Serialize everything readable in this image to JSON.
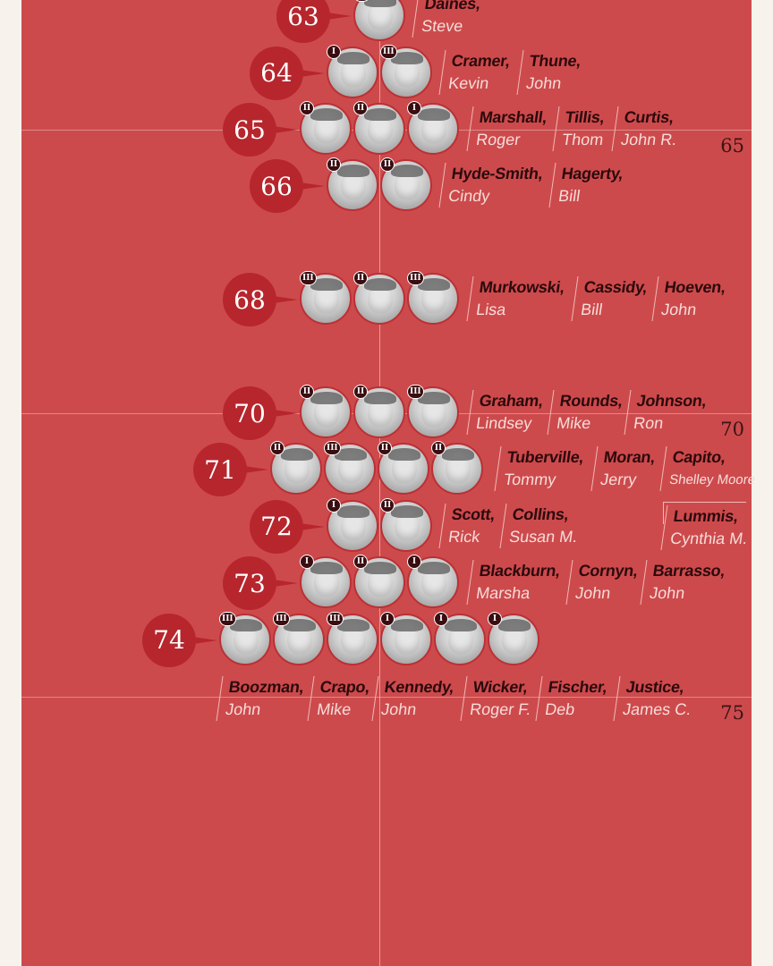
{
  "chart_data": {
    "type": "scatter",
    "title": "",
    "xlabel": "",
    "ylabel": "",
    "axis_ticks": [
      "65",
      "70",
      "75"
    ],
    "colors": {
      "panel": "#cd4a4c",
      "badge": "#b7262d",
      "class_badge": "#3a0d10"
    },
    "groups": [
      {
        "age": 63,
        "age_label": "63",
        "senators": [
          {
            "last": "Daines,",
            "first": "Steve",
            "class": "III"
          }
        ]
      },
      {
        "age": 64,
        "age_label": "64",
        "senators": [
          {
            "last": "Cramer,",
            "first": "Kevin",
            "class": "I"
          },
          {
            "last": "Thune,",
            "first": "John",
            "class": "III"
          }
        ]
      },
      {
        "age": 65,
        "age_label": "65",
        "senators": [
          {
            "last": "Marshall,",
            "first": "Roger",
            "class": "II"
          },
          {
            "last": "Tillis,",
            "first": "Thom",
            "class": "II"
          },
          {
            "last": "Curtis,",
            "first": "John R.",
            "class": "I"
          }
        ]
      },
      {
        "age": 66,
        "age_label": "66",
        "senators": [
          {
            "last": "Hyde-Smith,",
            "first": "Cindy",
            "class": "II"
          },
          {
            "last": "Hagerty,",
            "first": "Bill",
            "class": "II"
          }
        ]
      },
      {
        "age": 68,
        "age_label": "68",
        "senators": [
          {
            "last": "Murkowski,",
            "first": "Lisa",
            "class": "III"
          },
          {
            "last": "Cassidy,",
            "first": "Bill",
            "class": "II"
          },
          {
            "last": "Hoeven,",
            "first": "John",
            "class": "III"
          }
        ]
      },
      {
        "age": 70,
        "age_label": "70",
        "senators": [
          {
            "last": "Graham,",
            "first": "Lindsey",
            "class": "II"
          },
          {
            "last": "Rounds,",
            "first": "Mike",
            "class": "II"
          },
          {
            "last": "Johnson,",
            "first": "Ron",
            "class": "III"
          }
        ]
      },
      {
        "age": 71,
        "age_label": "71",
        "senators": [
          {
            "last": "Tuberville,",
            "first": "Tommy",
            "class": "II"
          },
          {
            "last": "Moran,",
            "first": "Jerry",
            "class": "III"
          },
          {
            "last": "Capito,",
            "first": "Shelley Moore",
            "class": "II"
          },
          {
            "last": "Lummis,",
            "first": "Cynthia M.",
            "class": "II"
          }
        ]
      },
      {
        "age": 72,
        "age_label": "72",
        "senators": [
          {
            "last": "Scott,",
            "first": "Rick",
            "class": "I"
          },
          {
            "last": "Collins,",
            "first": "Susan M.",
            "class": "II"
          }
        ]
      },
      {
        "age": 73,
        "age_label": "73",
        "senators": [
          {
            "last": "Blackburn,",
            "first": "Marsha",
            "class": "I"
          },
          {
            "last": "Cornyn,",
            "first": "John",
            "class": "II"
          },
          {
            "last": "Barrasso,",
            "first": "John",
            "class": "I"
          }
        ]
      },
      {
        "age": 74,
        "age_label": "74",
        "senators": [
          {
            "last": "Boozman,",
            "first": "John",
            "class": "III"
          },
          {
            "last": "Crapo,",
            "first": "Mike",
            "class": "III"
          },
          {
            "last": "Kennedy,",
            "first": "John",
            "class": "III"
          },
          {
            "last": "Wicker,",
            "first": "Roger F.",
            "class": "I"
          },
          {
            "last": "Fischer,",
            "first": "Deb",
            "class": "I"
          },
          {
            "last": "Justice,",
            "first": "James C.",
            "class": "I"
          }
        ]
      }
    ]
  }
}
